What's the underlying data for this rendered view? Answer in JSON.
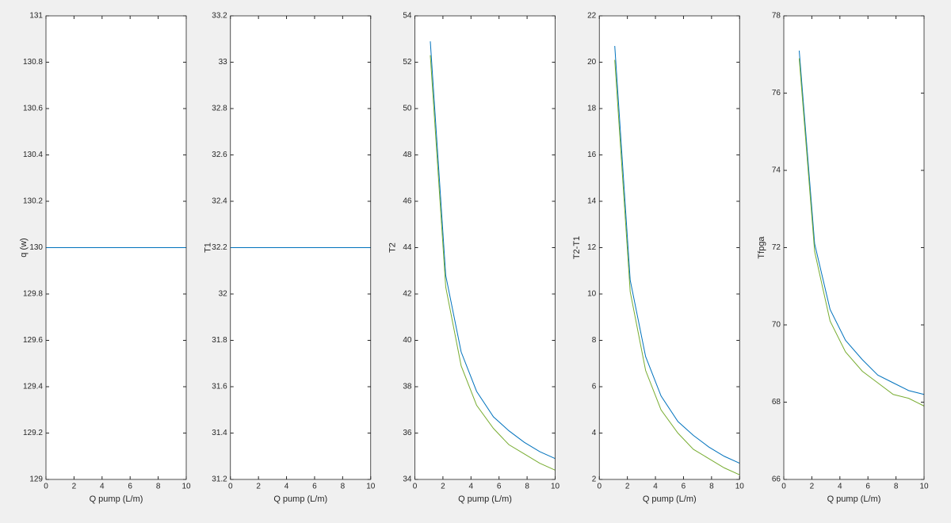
{
  "chart_data": [
    {
      "type": "line",
      "ylabel": "q (w)",
      "xlabel": "Q pump (L/m)",
      "x": [
        0,
        10
      ],
      "series": [
        {
          "color": "#0072bd",
          "values": [
            130,
            130
          ]
        }
      ],
      "xlim": [
        0,
        10
      ],
      "xticks": [
        0,
        2,
        4,
        6,
        8,
        10
      ],
      "ylim": [
        129,
        131
      ],
      "yticks": [
        129,
        129.2,
        129.4,
        129.6,
        129.8,
        130,
        130.2,
        130.4,
        130.6,
        130.8,
        131
      ]
    },
    {
      "type": "line",
      "ylabel": "T1",
      "xlabel": "Q pump (L/m)",
      "x": [
        0,
        10
      ],
      "series": [
        {
          "color": "#0072bd",
          "values": [
            32.2,
            32.2
          ]
        }
      ],
      "xlim": [
        0,
        10
      ],
      "xticks": [
        0,
        2,
        4,
        6,
        8,
        10
      ],
      "ylim": [
        31.2,
        33.2
      ],
      "yticks": [
        31.2,
        31.4,
        31.6,
        31.8,
        32,
        32.2,
        32.4,
        32.6,
        32.8,
        33,
        33.2
      ]
    },
    {
      "type": "line",
      "ylabel": "T2",
      "xlabel": "Q pump (L/m)",
      "x": [
        1.1,
        2.2,
        3.3,
        4.4,
        5.6,
        6.7,
        7.8,
        8.9,
        10
      ],
      "series": [
        {
          "color": "#0072bd",
          "values": [
            52.9,
            42.8,
            39.5,
            37.8,
            36.7,
            36.1,
            35.6,
            35.2,
            34.9
          ]
        },
        {
          "color": "#77ac30",
          "values": [
            52.3,
            42.3,
            38.9,
            37.2,
            36.2,
            35.5,
            35.1,
            34.7,
            34.4
          ]
        }
      ],
      "xlim": [
        0,
        10
      ],
      "xticks": [
        0,
        2,
        4,
        6,
        8,
        10
      ],
      "ylim": [
        34,
        54
      ],
      "yticks": [
        34,
        36,
        38,
        40,
        42,
        44,
        46,
        48,
        50,
        52,
        54
      ]
    },
    {
      "type": "line",
      "ylabel": "T2-T1",
      "xlabel": "Q pump (L/m)",
      "x": [
        1.1,
        2.2,
        3.3,
        4.4,
        5.6,
        6.7,
        7.8,
        8.9,
        10
      ],
      "series": [
        {
          "color": "#0072bd",
          "values": [
            20.7,
            10.6,
            7.3,
            5.6,
            4.5,
            3.9,
            3.4,
            3.0,
            2.7
          ]
        },
        {
          "color": "#77ac30",
          "values": [
            20.1,
            10.1,
            6.7,
            5.0,
            4.0,
            3.3,
            2.9,
            2.5,
            2.2
          ]
        }
      ],
      "xlim": [
        0,
        10
      ],
      "xticks": [
        0,
        2,
        4,
        6,
        8,
        10
      ],
      "ylim": [
        2,
        22
      ],
      "yticks": [
        2,
        4,
        6,
        8,
        10,
        12,
        14,
        16,
        18,
        20,
        22
      ]
    },
    {
      "type": "line",
      "ylabel": "Tfpga",
      "xlabel": "Q pump (L/m)",
      "x": [
        1.1,
        2.2,
        3.3,
        4.4,
        5.6,
        6.7,
        7.8,
        8.9,
        10
      ],
      "series": [
        {
          "color": "#0072bd",
          "values": [
            77.1,
            72.1,
            70.4,
            69.6,
            69.1,
            68.7,
            68.5,
            68.3,
            68.2
          ]
        },
        {
          "color": "#77ac30",
          "values": [
            76.9,
            71.9,
            70.1,
            69.3,
            68.8,
            68.5,
            68.2,
            68.1,
            67.9
          ]
        }
      ],
      "xlim": [
        0,
        10
      ],
      "xticks": [
        0,
        2,
        4,
        6,
        8,
        10
      ],
      "ylim": [
        66,
        78
      ],
      "yticks": [
        66,
        68,
        70,
        72,
        74,
        76,
        78
      ]
    }
  ]
}
